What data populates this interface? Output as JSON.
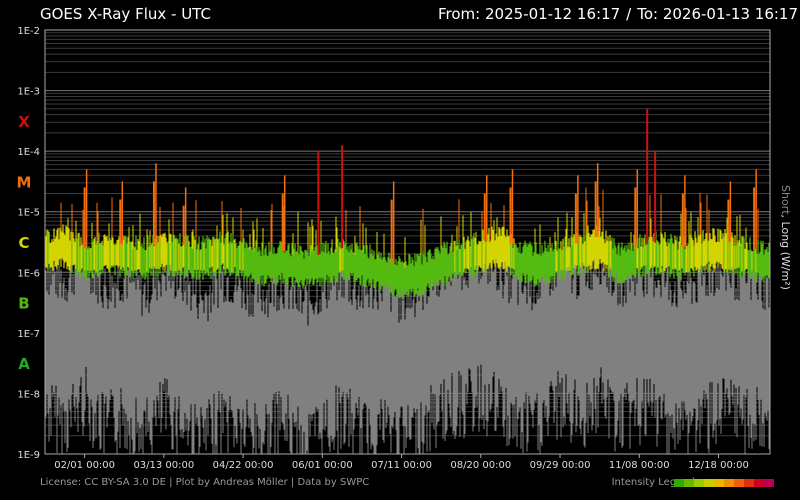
{
  "header": {
    "title": "GOES X-Ray Flux - UTC",
    "from_label": "From: 2025-01-12 16:17",
    "separator": "/",
    "to_label": "To: 2026-01-13 16:17"
  },
  "axis_label": {
    "short": "Short",
    "rest": ", Long (W/m²)"
  },
  "footer": {
    "license": "License: CC BY-SA 3.0 DE | Plot by Andreas Möller | Data by SWPC",
    "legend_label": "Intensity Legend"
  },
  "colors": {
    "A": "#22aa22",
    "B": "#55bb11",
    "C": "#d4d400",
    "M": "#f07010",
    "X": "#cc1111",
    "short_series": "#808080",
    "legend": [
      "#33aa00",
      "#66bb00",
      "#99cc00",
      "#cccc00",
      "#e6b800",
      "#f09000",
      "#f06010",
      "#e03010",
      "#cc0020",
      "#bb0050"
    ]
  },
  "chart_data": {
    "type": "line",
    "title": "GOES X-Ray Flux - UTC",
    "ylabel": "Short, Long (W/m²)",
    "yscale": "log",
    "ylim": [
      1e-09,
      0.01
    ],
    "yticks": [
      "1E-2",
      "1E-3",
      "1E-4",
      "1E-5",
      "1E-6",
      "1E-7",
      "1E-8",
      "1E-9"
    ],
    "ytick_values": [
      -2,
      -3,
      -4,
      -5,
      -6,
      -7,
      -8,
      -9
    ],
    "flare_classes": [
      {
        "label": "X",
        "exp": -3.5
      },
      {
        "label": "M",
        "exp": -4.5
      },
      {
        "label": "C",
        "exp": -5.5
      },
      {
        "label": "B",
        "exp": -6.5
      },
      {
        "label": "A",
        "exp": -7.5
      }
    ],
    "xlim": [
      "2025-01-12",
      "2026-01-13"
    ],
    "xticks": [
      "02/01 00:00",
      "03/13 00:00",
      "04/22 00:00",
      "06/01 00:00",
      "07/11 00:00",
      "08/20 00:00",
      "09/29 00:00",
      "11/08 00:00",
      "12/18 00:00"
    ],
    "xtick_days": [
      20,
      60,
      100,
      140,
      180,
      220,
      260,
      300,
      340
    ],
    "total_days": 366,
    "series": [
      {
        "name": "Long",
        "x_days": [
          0,
          10,
          20,
          30,
          40,
          50,
          60,
          70,
          80,
          90,
          100,
          110,
          120,
          130,
          140,
          150,
          160,
          170,
          180,
          190,
          200,
          210,
          220,
          230,
          240,
          250,
          260,
          270,
          280,
          290,
          300,
          310,
          320,
          330,
          340,
          350,
          360,
          366
        ],
        "log_flux": [
          -5.7,
          -5.6,
          -5.8,
          -5.7,
          -5.75,
          -5.8,
          -5.7,
          -5.75,
          -5.8,
          -5.7,
          -5.8,
          -5.9,
          -5.85,
          -5.95,
          -5.9,
          -5.8,
          -5.9,
          -6.0,
          -6.1,
          -6.05,
          -5.9,
          -5.8,
          -5.7,
          -5.6,
          -5.85,
          -5.9,
          -5.8,
          -5.7,
          -5.6,
          -5.9,
          -5.75,
          -5.7,
          -5.8,
          -5.7,
          -5.65,
          -5.75,
          -5.85,
          -5.9
        ]
      },
      {
        "name": "Short",
        "x_days": [
          0,
          10,
          20,
          30,
          40,
          50,
          60,
          70,
          80,
          90,
          100,
          110,
          120,
          130,
          140,
          150,
          160,
          170,
          180,
          190,
          200,
          210,
          220,
          230,
          240,
          250,
          260,
          270,
          280,
          290,
          300,
          310,
          320,
          330,
          340,
          350,
          360,
          366
        ],
        "log_flux": [
          -7.2,
          -7.4,
          -7.0,
          -7.5,
          -7.3,
          -7.6,
          -7.2,
          -7.4,
          -7.7,
          -7.3,
          -7.5,
          -7.6,
          -7.4,
          -7.8,
          -7.5,
          -7.3,
          -7.6,
          -7.4,
          -7.7,
          -7.5,
          -7.2,
          -7.1,
          -7.0,
          -7.2,
          -7.5,
          -7.4,
          -7.1,
          -7.3,
          -7.0,
          -7.4,
          -7.2,
          -7.3,
          -7.5,
          -7.4,
          -7.2,
          -7.3,
          -7.4,
          -7.5
        ]
      }
    ],
    "flares": [
      {
        "day": 20,
        "log_flux": -4.6
      },
      {
        "day": 38,
        "log_flux": -4.8
      },
      {
        "day": 55,
        "log_flux": -4.5
      },
      {
        "day": 70,
        "log_flux": -4.9
      },
      {
        "day": 120,
        "log_flux": -4.7
      },
      {
        "day": 138,
        "log_flux": -4.0
      },
      {
        "day": 150,
        "log_flux": -3.9
      },
      {
        "day": 175,
        "log_flux": -4.8
      },
      {
        "day": 222,
        "log_flux": -4.7
      },
      {
        "day": 235,
        "log_flux": -4.6
      },
      {
        "day": 268,
        "log_flux": -4.7
      },
      {
        "day": 278,
        "log_flux": -4.5
      },
      {
        "day": 298,
        "log_flux": -4.6
      },
      {
        "day": 304,
        "log_flux": -3.3
      },
      {
        "day": 308,
        "log_flux": -4.0
      },
      {
        "day": 322,
        "log_flux": -4.7
      },
      {
        "day": 345,
        "log_flux": -4.8
      },
      {
        "day": 358,
        "log_flux": -4.6
      }
    ]
  }
}
